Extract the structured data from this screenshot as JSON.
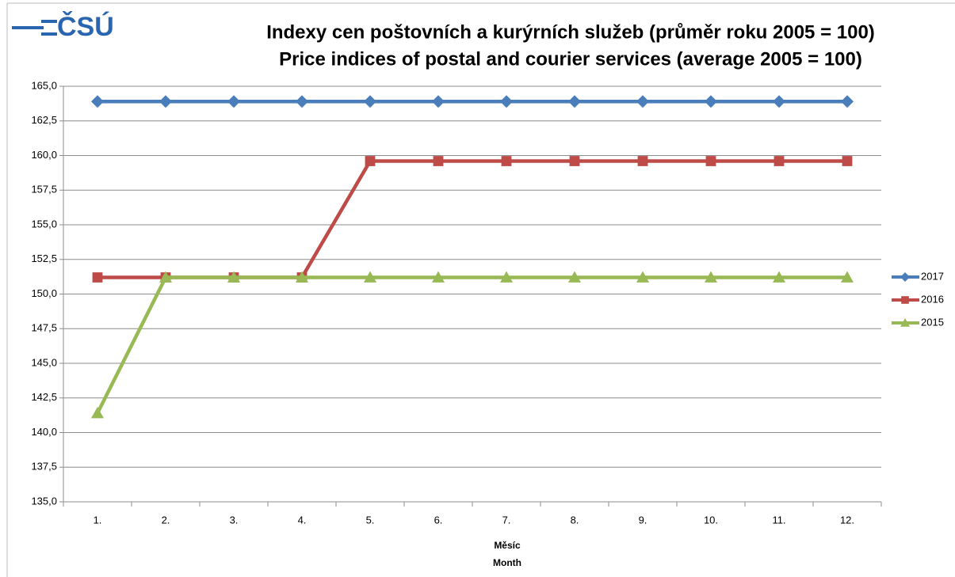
{
  "chart_data": {
    "type": "line",
    "logo": "ČSÚ",
    "title": [
      "Indexy cen poštovních a kurýrních služeb (průměr roku 2005 = 100)",
      "Price indices of postal and courier services (average 2005 = 100)"
    ],
    "x_label": [
      "Měsíc",
      "Month"
    ],
    "categories": [
      "1.",
      "2.",
      "3.",
      "4.",
      "5.",
      "6.",
      "7.",
      "8.",
      "9.",
      "10.",
      "11.",
      "12."
    ],
    "series": [
      {
        "name": "2017",
        "color": "#4a7ebb",
        "marker": "diamond",
        "values": [
          163.9,
          163.9,
          163.9,
          163.9,
          163.9,
          163.9,
          163.9,
          163.9,
          163.9,
          163.9,
          163.9,
          163.9
        ]
      },
      {
        "name": "2016",
        "color": "#be4b48",
        "marker": "square",
        "values": [
          151.2,
          151.2,
          151.2,
          151.2,
          159.6,
          159.6,
          159.6,
          159.6,
          159.6,
          159.6,
          159.6,
          159.6
        ]
      },
      {
        "name": "2015",
        "color": "#98b954",
        "marker": "triangle",
        "values": [
          141.4,
          151.2,
          151.2,
          151.2,
          151.2,
          151.2,
          151.2,
          151.2,
          151.2,
          151.2,
          151.2,
          151.2
        ]
      }
    ],
    "ylim": [
      135,
      165
    ],
    "yticks": [
      {
        "value": 135,
        "label": "135,0"
      },
      {
        "value": 137.5,
        "label": "137,5"
      },
      {
        "value": 140,
        "label": "140,0"
      },
      {
        "value": 142.5,
        "label": "142,5"
      },
      {
        "value": 145,
        "label": "145,0"
      },
      {
        "value": 147.5,
        "label": "147,5"
      },
      {
        "value": 150,
        "label": "150,0"
      },
      {
        "value": 152.5,
        "label": "152,5"
      },
      {
        "value": 155,
        "label": "155,0"
      },
      {
        "value": 157.5,
        "label": "157,5"
      },
      {
        "value": 160,
        "label": "160,0"
      },
      {
        "value": 162.5,
        "label": "162,5"
      },
      {
        "value": 165,
        "label": "165,0"
      }
    ],
    "grid": true,
    "legend": "right"
  }
}
